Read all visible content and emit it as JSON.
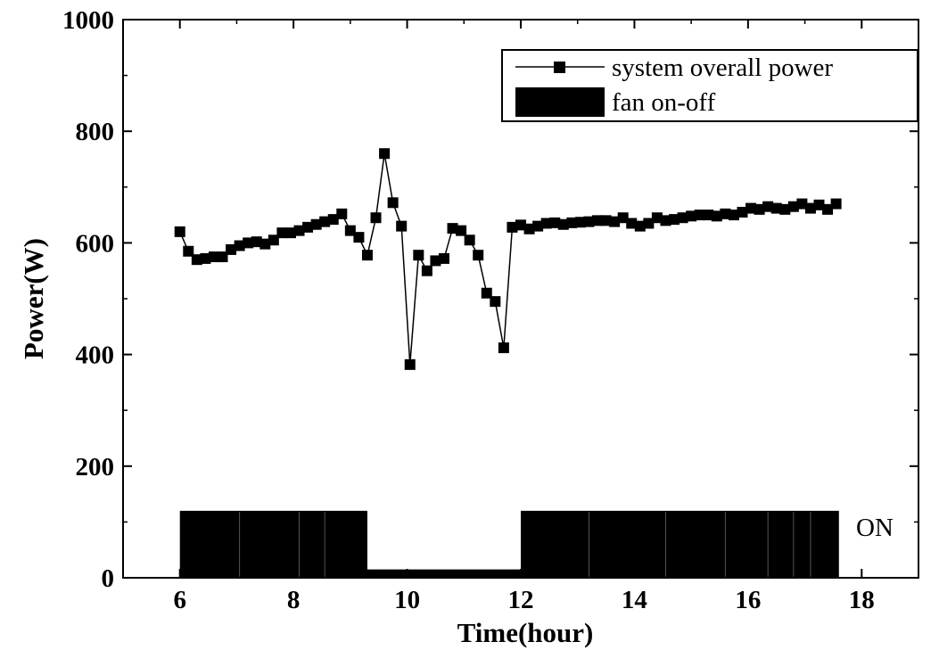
{
  "chart_data": {
    "type": "line",
    "title": "",
    "xlabel": "Time(hour)",
    "ylabel": "Power(W)",
    "xlim": [
      5,
      19
    ],
    "ylim": [
      0,
      1000
    ],
    "xticks": [
      6,
      8,
      10,
      12,
      14,
      16,
      18
    ],
    "yticks": [
      0,
      200,
      400,
      600,
      800,
      1000
    ],
    "grid": false,
    "legend_position": "top-right",
    "series": [
      {
        "name": "system overall power",
        "marker": "square",
        "color": "#000000",
        "x": [
          6.0,
          6.15,
          6.3,
          6.45,
          6.6,
          6.75,
          6.9,
          7.05,
          7.2,
          7.35,
          7.5,
          7.65,
          7.8,
          7.95,
          8.1,
          8.25,
          8.4,
          8.55,
          8.7,
          8.85,
          9.0,
          9.15,
          9.3,
          9.45,
          9.6,
          9.75,
          9.9,
          10.05,
          10.2,
          10.35,
          10.5,
          10.65,
          10.8,
          10.95,
          11.1,
          11.25,
          11.4,
          11.55,
          11.7,
          11.85,
          12.0,
          12.15,
          12.3,
          12.45,
          12.6,
          12.75,
          12.9,
          13.05,
          13.2,
          13.35,
          13.5,
          13.65,
          13.8,
          13.95,
          14.1,
          14.25,
          14.4,
          14.55,
          14.7,
          14.85,
          15.0,
          15.15,
          15.3,
          15.45,
          15.6,
          15.75,
          15.9,
          16.05,
          16.2,
          16.35,
          16.5,
          16.65,
          16.8,
          16.95,
          17.1,
          17.25,
          17.4,
          17.55
        ],
        "values": [
          620,
          585,
          570,
          572,
          575,
          575,
          588,
          595,
          600,
          602,
          598,
          605,
          618,
          618,
          622,
          628,
          633,
          638,
          642,
          652,
          622,
          610,
          578,
          645,
          760,
          672,
          630,
          382,
          578,
          550,
          568,
          572,
          626,
          622,
          605,
          578,
          510,
          495,
          412,
          628,
          632,
          625,
          630,
          635,
          636,
          633,
          636,
          637,
          638,
          640,
          640,
          638,
          645,
          635,
          630,
          635,
          645,
          640,
          642,
          645,
          648,
          650,
          650,
          648,
          652,
          650,
          655,
          662,
          660,
          665,
          662,
          660,
          665,
          670,
          662,
          668,
          660,
          670
        ]
      },
      {
        "name": "fan on-off",
        "type": "area",
        "color": "#000000",
        "x": [
          6.0,
          9.3,
          9.3,
          12.0,
          12.0,
          17.6
        ],
        "values": [
          120,
          120,
          15,
          15,
          120,
          120
        ]
      }
    ],
    "annotations": [
      {
        "text": "ON",
        "x": 17.6,
        "y": 95
      }
    ]
  }
}
